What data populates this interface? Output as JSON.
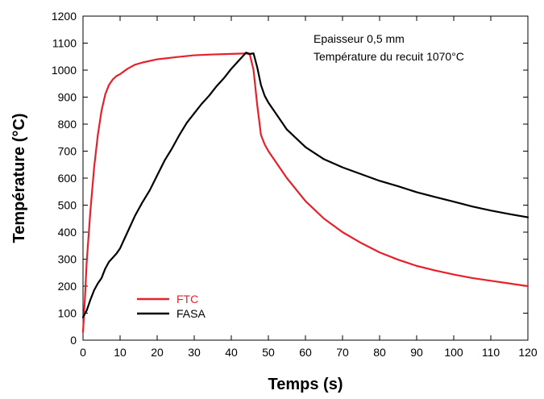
{
  "chart_data": {
    "type": "line",
    "xlabel": "Temps (s)",
    "ylabel": "Température (°C)",
    "xlim": [
      0,
      120
    ],
    "ylim": [
      0,
      1200
    ],
    "xticks": [
      0,
      10,
      20,
      30,
      40,
      50,
      60,
      70,
      80,
      90,
      100,
      110,
      120
    ],
    "yticks": [
      0,
      100,
      200,
      300,
      400,
      500,
      600,
      700,
      800,
      900,
      1000,
      1100,
      1200
    ],
    "grid": false,
    "legend_position": "bottom-left",
    "annotations": [
      "Epaisseur 0,5 mm",
      "Température du recuit 1070°C"
    ],
    "series": [
      {
        "name": "FTC",
        "color": "#e8202a",
        "x": [
          0,
          0.5,
          1,
          2,
          3,
          4,
          5,
          6,
          7,
          8,
          9,
          10,
          12,
          14,
          16,
          20,
          25,
          30,
          35,
          40,
          44,
          45,
          46,
          47,
          48,
          49,
          50,
          52,
          55,
          60,
          65,
          70,
          75,
          80,
          85,
          90,
          95,
          100,
          105,
          110,
          115,
          120
        ],
        "y": [
          30,
          150,
          290,
          480,
          640,
          760,
          850,
          910,
          945,
          965,
          978,
          985,
          1005,
          1020,
          1028,
          1040,
          1048,
          1055,
          1058,
          1060,
          1062,
          1058,
          1000,
          870,
          760,
          725,
          700,
          660,
          600,
          515,
          450,
          400,
          360,
          325,
          298,
          275,
          258,
          243,
          230,
          220,
          210,
          200
        ]
      },
      {
        "name": "FASA",
        "color": "#000000",
        "x": [
          0,
          1,
          2,
          3,
          4,
          5,
          6,
          7,
          8,
          9,
          10,
          12,
          14,
          16,
          18,
          20,
          22,
          24,
          26,
          28,
          30,
          32,
          34,
          36,
          38,
          40,
          42,
          43,
          44,
          45,
          46,
          47,
          48,
          49,
          50,
          52,
          55,
          60,
          65,
          70,
          75,
          80,
          85,
          90,
          95,
          100,
          105,
          110,
          115,
          120
        ],
        "y": [
          85,
          110,
          150,
          185,
          210,
          230,
          265,
          290,
          305,
          320,
          340,
          400,
          460,
          510,
          555,
          610,
          665,
          710,
          760,
          805,
          840,
          875,
          905,
          940,
          970,
          1005,
          1035,
          1050,
          1065,
          1060,
          1062,
          1010,
          945,
          905,
          880,
          840,
          780,
          715,
          670,
          640,
          615,
          590,
          570,
          548,
          530,
          513,
          495,
          480,
          467,
          455
        ]
      }
    ]
  }
}
